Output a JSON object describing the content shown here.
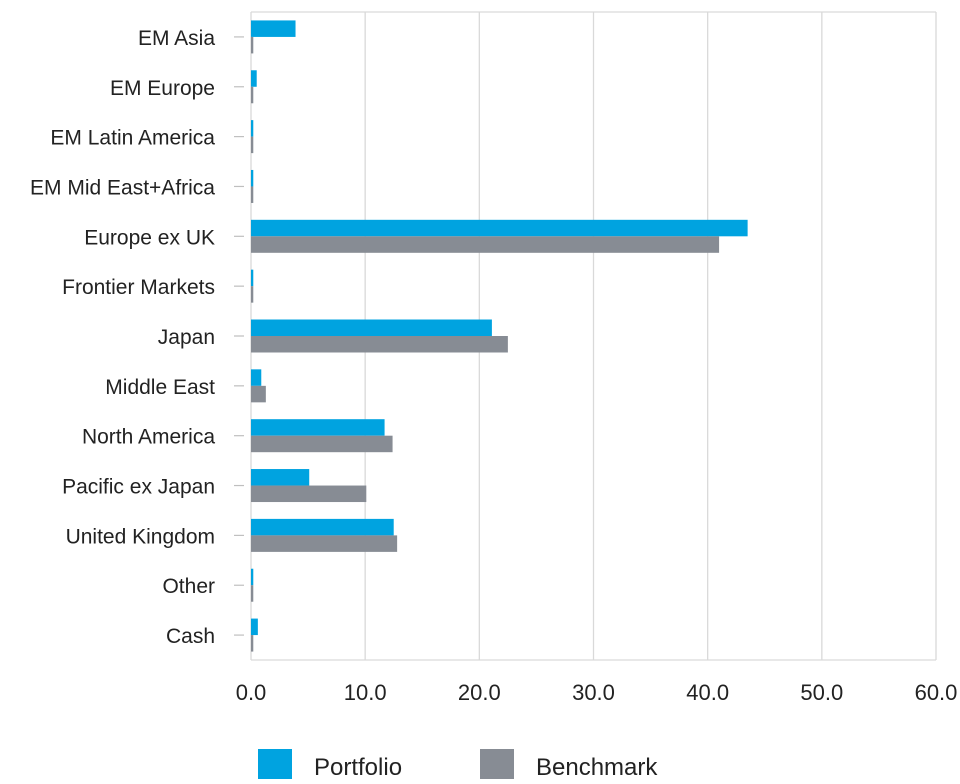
{
  "chart_data": {
    "type": "bar",
    "orientation": "horizontal",
    "categories": [
      "EM Asia",
      "EM Europe",
      "EM Latin America",
      "EM Mid East+Africa",
      "Europe ex UK",
      "Frontier Markets",
      "Japan",
      "Middle East",
      "North America",
      "Pacific ex Japan",
      "United Kingdom",
      "Other",
      "Cash"
    ],
    "series": [
      {
        "name": "Portfolio",
        "color": "#00a3e0",
        "values": [
          3.9,
          0.5,
          0.2,
          0.2,
          43.5,
          0.2,
          21.1,
          0.9,
          11.7,
          5.1,
          12.5,
          0.2,
          0.6
        ]
      },
      {
        "name": "Benchmark",
        "color": "#878c94",
        "values": [
          0.2,
          0.2,
          0.2,
          0.2,
          41.0,
          0.2,
          22.5,
          1.3,
          12.4,
          10.1,
          12.8,
          0.2,
          0.2
        ]
      }
    ],
    "xlim": [
      0,
      60
    ],
    "xticks": [
      "0.0",
      "10.0",
      "20.0",
      "30.0",
      "40.0",
      "50.0",
      "60.0"
    ],
    "grid": true,
    "legend_position": "bottom"
  }
}
